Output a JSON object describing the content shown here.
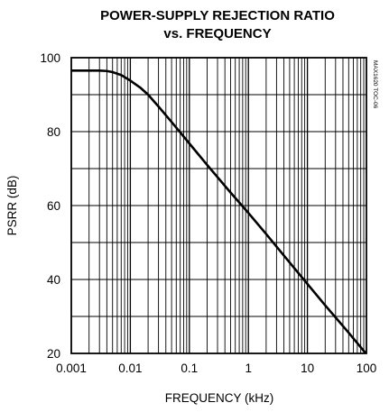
{
  "chart_data": {
    "type": "line",
    "title": "POWER-SUPPLY REJECTION RATIO",
    "subtitle": "vs. FREQUENCY",
    "xlabel": "FREQUENCY (kHz)",
    "ylabel": "PSRR (dB)",
    "x_scale": "log",
    "xlim": [
      0.001,
      100
    ],
    "ylim": [
      20,
      100
    ],
    "x_ticks": [
      "0.001",
      "0.01",
      "0.1",
      "1",
      "10",
      "100"
    ],
    "y_ticks": [
      "20",
      "40",
      "60",
      "80",
      "100"
    ],
    "grid": true,
    "annotation": "MAX1620 TOC-06",
    "series": [
      {
        "x": [
          0.001,
          0.002,
          0.003,
          0.004,
          0.005,
          0.007,
          0.01,
          0.015,
          0.02,
          0.03,
          0.05,
          0.07,
          0.1,
          0.2,
          0.5,
          1,
          2,
          5,
          10,
          20,
          50,
          100
        ],
        "y": [
          96.5,
          96.5,
          96.5,
          96.4,
          96.1,
          95.3,
          93.8,
          91.8,
          90.0,
          86.8,
          82.6,
          79.8,
          76.8,
          71.0,
          63.5,
          58.0,
          52.3,
          44.6,
          38.8,
          33.0,
          25.6,
          19.8
        ]
      }
    ]
  }
}
